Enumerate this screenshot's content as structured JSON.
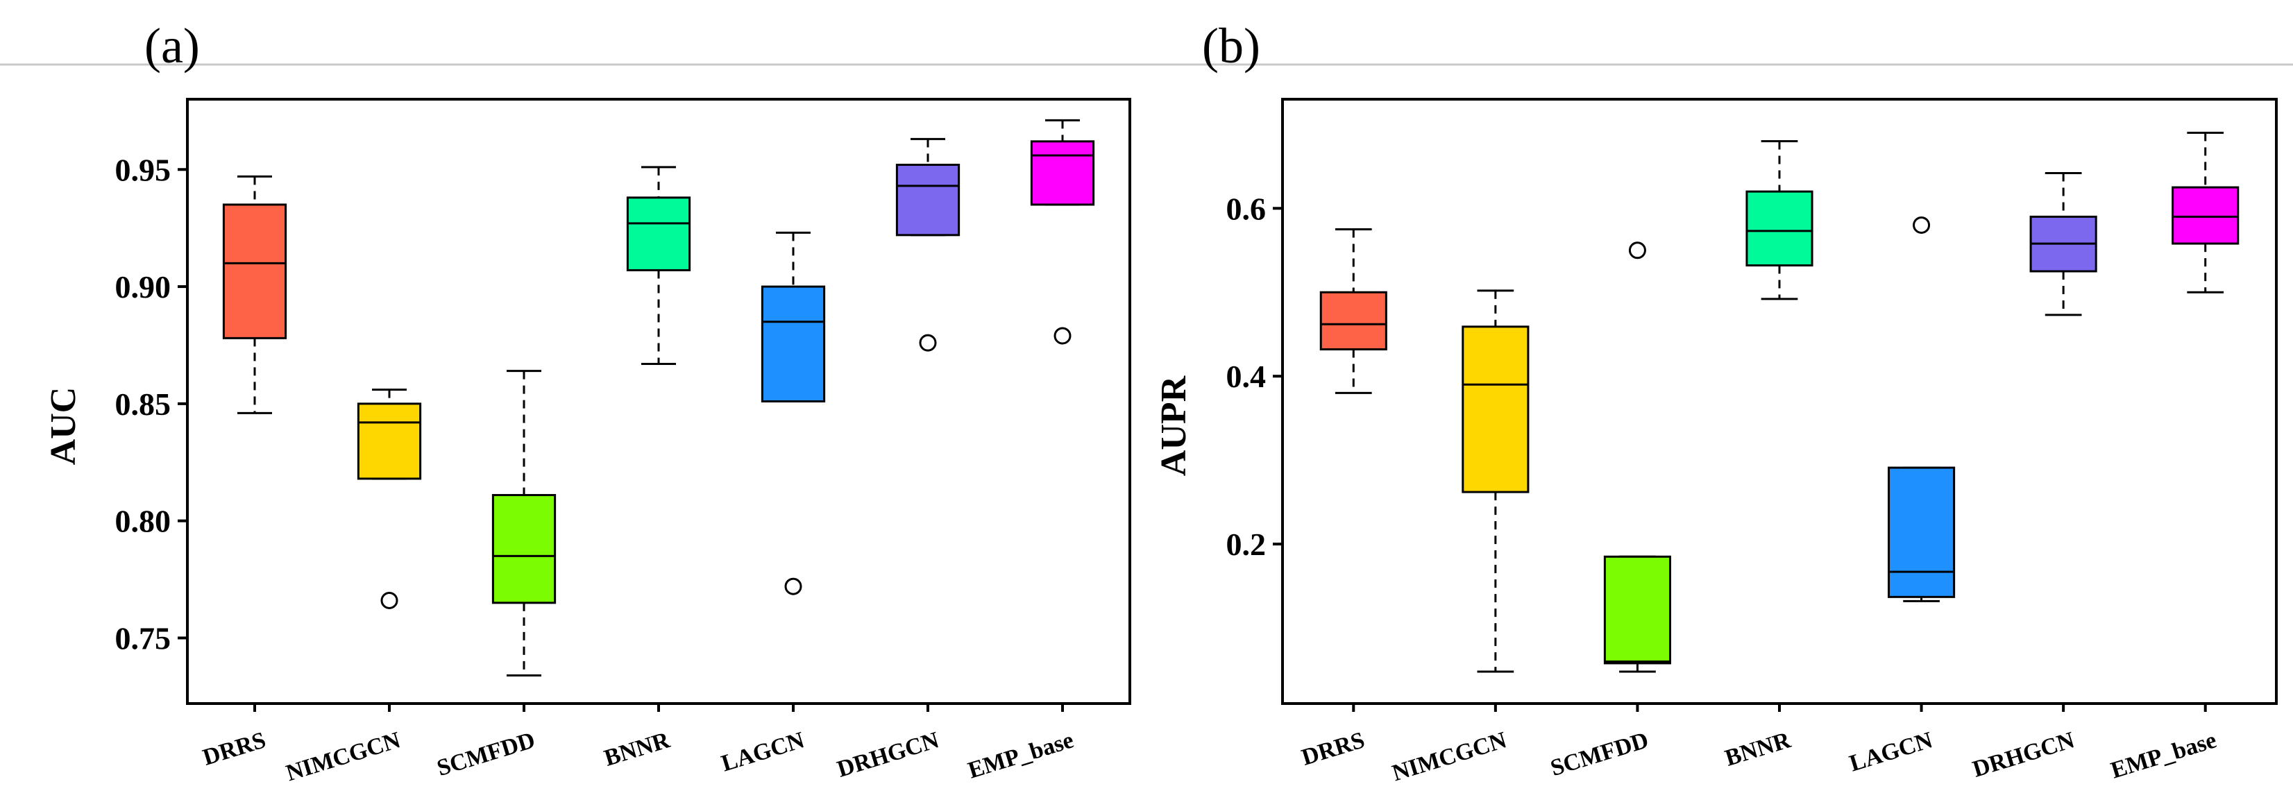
{
  "chart_data": [
    {
      "type": "box",
      "panel_label": "(a)",
      "ylabel": "AUC",
      "ylim": [
        0.722,
        0.98
      ],
      "yticks": [
        0.75,
        0.8,
        0.85,
        0.9,
        0.95
      ],
      "ytick_labels": [
        "0.75",
        "0.80",
        "0.85",
        "0.90",
        "0.95"
      ],
      "categories": [
        "DRRS",
        "NIMCGCN",
        "SCMFDD",
        "BNNR",
        "LAGCN",
        "DRHGCN",
        "EMP_base"
      ],
      "colors": [
        "#ff6347",
        "#ffd700",
        "#7cfc00",
        "#00fa9a",
        "#1e90ff",
        "#7b68ee",
        "#ff00ff"
      ],
      "boxes": [
        {
          "whisker_low": 0.846,
          "q1": 0.878,
          "median": 0.91,
          "q3": 0.935,
          "whisker_high": 0.947,
          "outliers": []
        },
        {
          "whisker_low": 0.818,
          "q1": 0.818,
          "median": 0.842,
          "q3": 0.85,
          "whisker_high": 0.856,
          "outliers": [
            0.766
          ]
        },
        {
          "whisker_low": 0.734,
          "q1": 0.765,
          "median": 0.785,
          "q3": 0.811,
          "whisker_high": 0.864,
          "outliers": []
        },
        {
          "whisker_low": 0.867,
          "q1": 0.907,
          "median": 0.927,
          "q3": 0.938,
          "whisker_high": 0.951,
          "outliers": []
        },
        {
          "whisker_low": 0.851,
          "q1": 0.851,
          "median": 0.885,
          "q3": 0.9,
          "whisker_high": 0.923,
          "outliers": [
            0.772
          ]
        },
        {
          "whisker_low": 0.922,
          "q1": 0.922,
          "median": 0.943,
          "q3": 0.952,
          "whisker_high": 0.963,
          "outliers": [
            0.876
          ]
        },
        {
          "whisker_low": 0.935,
          "q1": 0.935,
          "median": 0.956,
          "q3": 0.962,
          "whisker_high": 0.971,
          "outliers": [
            0.879
          ]
        }
      ]
    },
    {
      "type": "box",
      "panel_label": "(b)",
      "ylabel": "AUPR",
      "ylim": [
        0.01,
        0.73
      ],
      "yticks": [
        0.2,
        0.4,
        0.6
      ],
      "ytick_labels": [
        "0.2",
        "0.4",
        "0.6"
      ],
      "categories": [
        "DRRS",
        "NIMCGCN",
        "SCMFDD",
        "BNNR",
        "LAGCN",
        "DRHGCN",
        "EMP_base"
      ],
      "colors": [
        "#ff6347",
        "#ffd700",
        "#7cfc00",
        "#00fa9a",
        "#1e90ff",
        "#7b68ee",
        "#ff00ff"
      ],
      "boxes": [
        {
          "whisker_low": 0.38,
          "q1": 0.432,
          "median": 0.462,
          "q3": 0.5,
          "whisker_high": 0.575,
          "outliers": []
        },
        {
          "whisker_low": 0.048,
          "q1": 0.262,
          "median": 0.39,
          "q3": 0.459,
          "whisker_high": 0.502,
          "outliers": []
        },
        {
          "whisker_low": 0.048,
          "q1": 0.058,
          "median": 0.06,
          "q3": 0.185,
          "whisker_high": 0.185,
          "outliers": [
            0.55
          ]
        },
        {
          "whisker_low": 0.492,
          "q1": 0.532,
          "median": 0.573,
          "q3": 0.62,
          "whisker_high": 0.68,
          "outliers": []
        },
        {
          "whisker_low": 0.132,
          "q1": 0.137,
          "median": 0.167,
          "q3": 0.291,
          "whisker_high": 0.291,
          "outliers": [
            0.58
          ]
        },
        {
          "whisker_low": 0.473,
          "q1": 0.525,
          "median": 0.558,
          "q3": 0.59,
          "whisker_high": 0.642,
          "outliers": []
        },
        {
          "whisker_low": 0.5,
          "q1": 0.558,
          "median": 0.59,
          "q3": 0.625,
          "whisker_high": 0.69,
          "outliers": []
        }
      ]
    }
  ]
}
